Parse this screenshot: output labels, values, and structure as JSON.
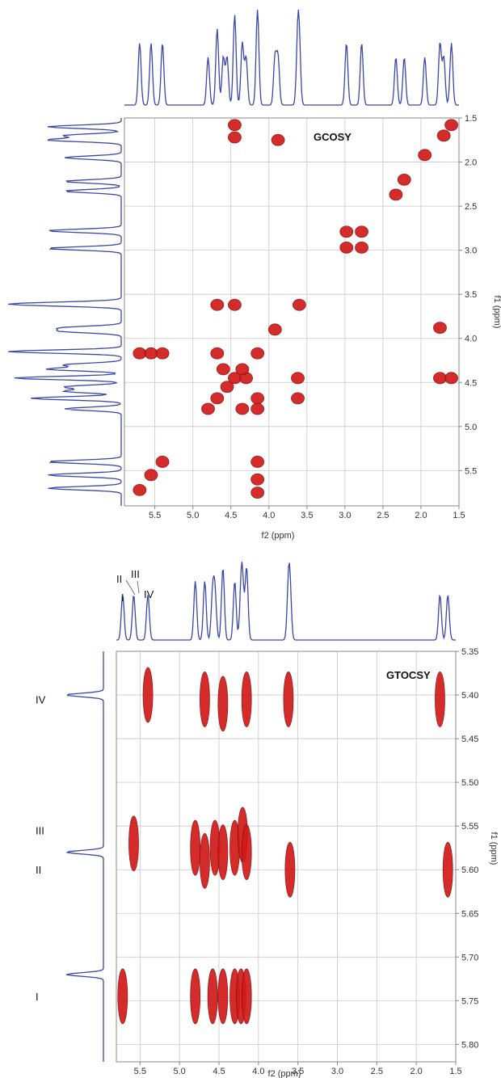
{
  "colors": {
    "spectrum": "#3a47a8",
    "peak": "#d11a1a",
    "grid": "#c8c8c8",
    "frame": "#888888"
  },
  "chart_data": [
    {
      "type": "scatter",
      "title": "GCOSY",
      "xlabel": "f2 (ppm)",
      "ylabel": "f1 (ppm)",
      "xlim": [
        5.9,
        1.5
      ],
      "ylim": [
        1.5,
        5.9
      ],
      "x_ticks": [
        "5.5",
        "5.0",
        "4.5",
        "4.0",
        "3.5",
        "3.0",
        "2.5",
        "2.0",
        "1.5"
      ],
      "y_ticks": [
        "1.5",
        "2.0",
        "2.5",
        "3.0",
        "3.5",
        "4.0",
        "4.5",
        "5.0",
        "5.5"
      ],
      "grid": true,
      "x_axis_reversed": true,
      "cross_peaks": [
        {
          "x": 4.45,
          "y": 1.58
        },
        {
          "x": 4.45,
          "y": 1.72
        },
        {
          "x": 3.88,
          "y": 1.75
        },
        {
          "x": 1.6,
          "y": 1.58
        },
        {
          "x": 1.7,
          "y": 1.7
        },
        {
          "x": 1.95,
          "y": 1.92
        },
        {
          "x": 2.22,
          "y": 2.2
        },
        {
          "x": 2.33,
          "y": 2.37
        },
        {
          "x": 2.98,
          "y": 2.79
        },
        {
          "x": 2.78,
          "y": 2.79
        },
        {
          "x": 2.98,
          "y": 2.97
        },
        {
          "x": 2.78,
          "y": 2.97
        },
        {
          "x": 4.68,
          "y": 3.62
        },
        {
          "x": 4.45,
          "y": 3.62
        },
        {
          "x": 3.6,
          "y": 3.62
        },
        {
          "x": 3.92,
          "y": 3.9
        },
        {
          "x": 1.75,
          "y": 3.88
        },
        {
          "x": 5.7,
          "y": 4.17
        },
        {
          "x": 5.55,
          "y": 4.17
        },
        {
          "x": 5.4,
          "y": 4.17
        },
        {
          "x": 4.68,
          "y": 4.17
        },
        {
          "x": 4.15,
          "y": 4.17
        },
        {
          "x": 4.6,
          "y": 4.35
        },
        {
          "x": 4.45,
          "y": 4.45
        },
        {
          "x": 4.3,
          "y": 4.45
        },
        {
          "x": 4.55,
          "y": 4.55
        },
        {
          "x": 4.35,
          "y": 4.35
        },
        {
          "x": 3.62,
          "y": 4.45
        },
        {
          "x": 1.75,
          "y": 4.45
        },
        {
          "x": 1.6,
          "y": 4.45
        },
        {
          "x": 4.68,
          "y": 4.68
        },
        {
          "x": 4.8,
          "y": 4.8
        },
        {
          "x": 4.15,
          "y": 4.68
        },
        {
          "x": 4.35,
          "y": 4.8
        },
        {
          "x": 4.15,
          "y": 4.8
        },
        {
          "x": 3.62,
          "y": 4.68
        },
        {
          "x": 5.4,
          "y": 5.4
        },
        {
          "x": 5.55,
          "y": 5.55
        },
        {
          "x": 5.7,
          "y": 5.72
        },
        {
          "x": 4.15,
          "y": 5.4
        },
        {
          "x": 4.15,
          "y": 5.6
        },
        {
          "x": 4.15,
          "y": 5.75
        }
      ]
    },
    {
      "type": "scatter",
      "title": "GTOCSY",
      "xlabel": "f2 (ppm)",
      "ylabel": "f1 (ppm)",
      "xlim": [
        5.8,
        1.5
      ],
      "ylim": [
        5.35,
        5.82
      ],
      "x_ticks": [
        "5.5",
        "5.0",
        "4.5",
        "4.0",
        "3.5",
        "3.0",
        "2.5",
        "2.0",
        "1.5"
      ],
      "y_ticks": [
        "5.35",
        "5.40",
        "5.45",
        "5.50",
        "5.55",
        "5.60",
        "5.65",
        "5.70",
        "5.75",
        "5.80"
      ],
      "grid": true,
      "x_axis_reversed": true,
      "row_labels": [
        {
          "label": "IV",
          "y": 5.405
        },
        {
          "label": "III",
          "y": 5.555
        },
        {
          "label": "II",
          "y": 5.6
        },
        {
          "label": "I",
          "y": 5.745
        }
      ],
      "top_labels": [
        "II",
        "III",
        "I",
        "IV"
      ],
      "cross_peaks": [
        {
          "x": 5.4,
          "y": 5.4
        },
        {
          "x": 4.68,
          "y": 5.405
        },
        {
          "x": 4.45,
          "y": 5.41
        },
        {
          "x": 4.15,
          "y": 5.405
        },
        {
          "x": 3.62,
          "y": 5.405
        },
        {
          "x": 1.7,
          "y": 5.405
        },
        {
          "x": 5.58,
          "y": 5.57
        },
        {
          "x": 4.8,
          "y": 5.575
        },
        {
          "x": 4.68,
          "y": 5.59
        },
        {
          "x": 4.55,
          "y": 5.575
        },
        {
          "x": 4.45,
          "y": 5.58
        },
        {
          "x": 4.3,
          "y": 5.575
        },
        {
          "x": 4.2,
          "y": 5.56
        },
        {
          "x": 4.15,
          "y": 5.58
        },
        {
          "x": 3.6,
          "y": 5.6
        },
        {
          "x": 1.6,
          "y": 5.6
        },
        {
          "x": 5.72,
          "y": 5.745
        },
        {
          "x": 4.8,
          "y": 5.745
        },
        {
          "x": 4.58,
          "y": 5.745
        },
        {
          "x": 4.45,
          "y": 5.745
        },
        {
          "x": 4.3,
          "y": 5.745
        },
        {
          "x": 4.22,
          "y": 5.745
        },
        {
          "x": 4.15,
          "y": 5.745
        }
      ]
    }
  ]
}
